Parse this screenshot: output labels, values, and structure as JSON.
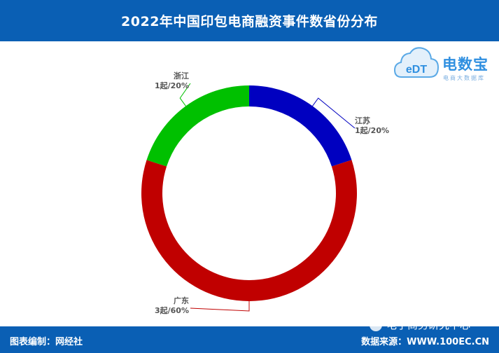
{
  "header": {
    "title": "2022年中国印包电商融资事件数省份分布"
  },
  "logo": {
    "icon_text": "eDT",
    "name": "电数宝",
    "subtitle": "电商大数据库"
  },
  "footer": {
    "left": "图表编制：网经社",
    "right": "数据来源：WWW.100EC.CN"
  },
  "watermark": {
    "text": "电子商务研究中心",
    "icon": "wechat-icon"
  },
  "colors": {
    "header_bg": "#0a5fb4",
    "jiangsu": "#0000c0",
    "guangdong": "#c00000",
    "zhejiang": "#00c000"
  },
  "chart_data": {
    "type": "pie",
    "style": "donut",
    "slices": [
      {
        "name": "江苏",
        "value": 1,
        "percent": 20,
        "label": "1起/20%",
        "color": "#0000c0"
      },
      {
        "name": "广东",
        "value": 3,
        "percent": 60,
        "label": "3起/60%",
        "color": "#c00000"
      },
      {
        "name": "浙江",
        "value": 1,
        "percent": 20,
        "label": "1起/20%",
        "color": "#00c000"
      }
    ]
  }
}
